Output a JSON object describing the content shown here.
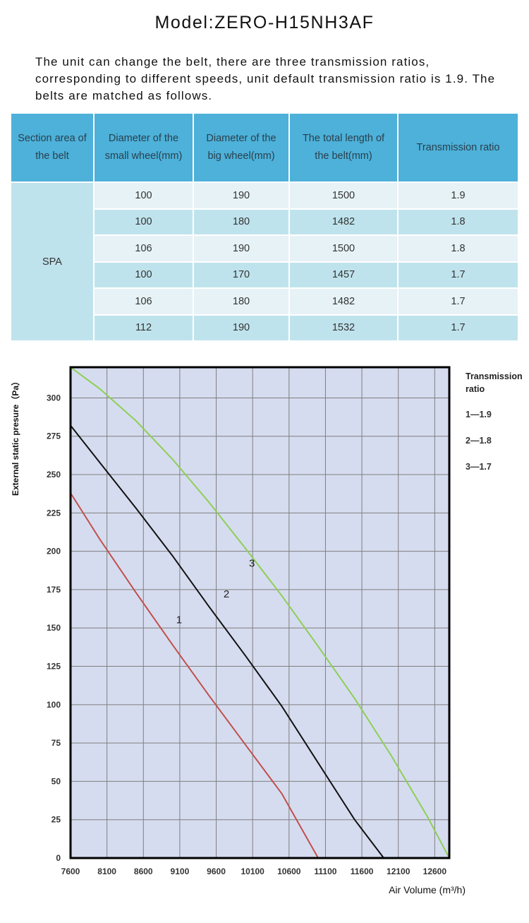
{
  "model_title": "Model:ZERO-H15NH3AF",
  "intro_text": "The unit can change the belt, there are three transmission ratios, corresponding to different speeds, unit default transmission ratio is 1.9. The belts are matched as follows.",
  "belt_table": {
    "headers": [
      "Section area of the belt",
      "Diameter of the small wheel(mm)",
      "Diameter of the big wheel(mm)",
      "The total length of the belt(mm)",
      "Transmission ratio"
    ],
    "section": "SPA",
    "rows": [
      {
        "small": "100",
        "big": "190",
        "length": "1500",
        "ratio": "1.9"
      },
      {
        "small": "100",
        "big": "180",
        "length": "1482",
        "ratio": "1.8"
      },
      {
        "small": "106",
        "big": "190",
        "length": "1500",
        "ratio": "1.8"
      },
      {
        "small": "100",
        "big": "170",
        "length": "1457",
        "ratio": "1.7"
      },
      {
        "small": "106",
        "big": "180",
        "length": "1482",
        "ratio": "1.7"
      },
      {
        "small": "112",
        "big": "190",
        "length": "1532",
        "ratio": "1.7"
      }
    ]
  },
  "chart_data": {
    "type": "line",
    "title": "",
    "xlabel": "Air Volume (m³/h)",
    "ylabel": "External static presure（Pa）",
    "xlim": [
      7600,
      12800
    ],
    "ylim": [
      0,
      320
    ],
    "x_ticks": [
      "7600",
      "8100",
      "8600",
      "9100",
      "9600",
      "10100",
      "10600",
      "11100",
      "11600",
      "12100",
      "12600"
    ],
    "y_ticks": [
      "0",
      "25",
      "50",
      "75",
      "100",
      "125",
      "150",
      "175",
      "200",
      "225",
      "250",
      "275",
      "300"
    ],
    "grid": true,
    "legend_title": "Transmission ratio",
    "legend_items": [
      "1—1.9",
      "2—1.8",
      "3—1.7"
    ],
    "legend_position": "right",
    "colors": {
      "series_1": "#c0504d",
      "series_2": "#111111",
      "series_3": "#8dcf55",
      "plot_bg": "#d6dcef",
      "grid": "#7f7f7f"
    },
    "series": [
      {
        "name": "1",
        "x": [
          7600,
          8000,
          8500,
          9000,
          9500,
          10000,
          10500,
          11000
        ],
        "y": [
          238,
          208,
          173,
          139,
          106,
          74,
          42,
          0
        ]
      },
      {
        "name": "2",
        "x": [
          7600,
          8000,
          8500,
          9000,
          9500,
          10000,
          10500,
          11000,
          11500,
          11900
        ],
        "y": [
          282,
          258,
          228,
          197,
          164,
          132,
          99,
          62,
          25,
          0
        ]
      },
      {
        "name": "3",
        "x": [
          7600,
          8000,
          8500,
          9000,
          9500,
          10000,
          10500,
          11000,
          11500,
          12000,
          12500,
          12800
        ],
        "y": [
          320,
          306,
          285,
          260,
          232,
          202,
          171,
          138,
          104,
          67,
          27,
          0
        ]
      }
    ]
  }
}
